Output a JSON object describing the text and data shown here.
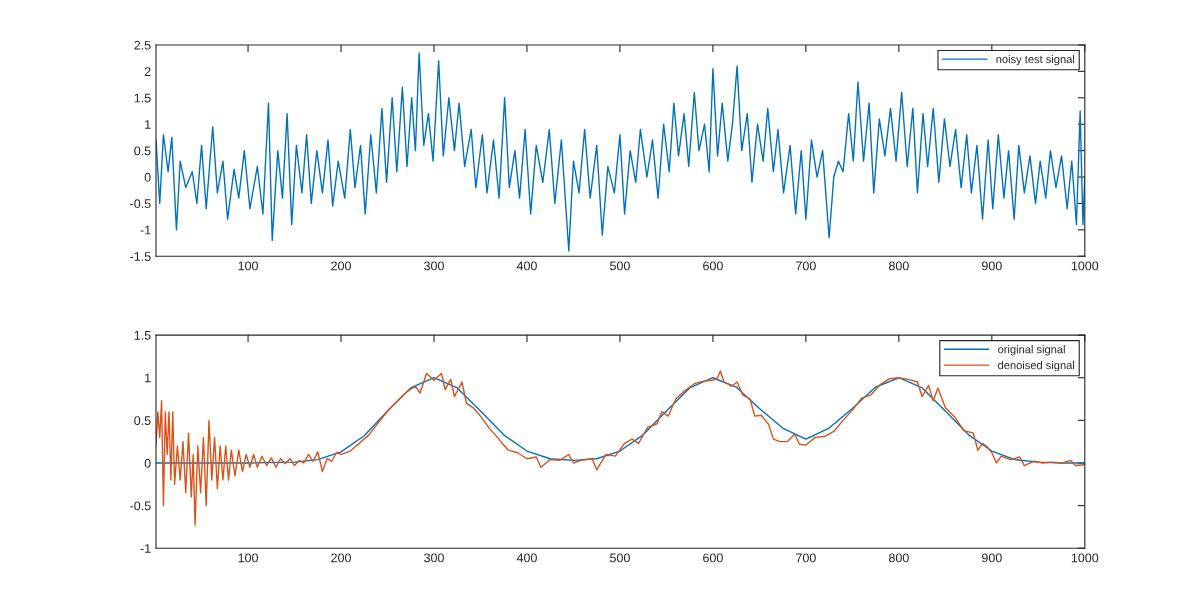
{
  "chart_data": [
    {
      "type": "line",
      "xlim": [
        1,
        1000
      ],
      "xticks": [
        100,
        200,
        300,
        400,
        500,
        600,
        700,
        800,
        900,
        1000
      ],
      "ylim": [
        -1.5,
        2.5
      ],
      "yticks": [
        -1.5,
        -1,
        -0.5,
        0,
        0.5,
        1,
        1.5,
        2,
        2.5
      ],
      "grid": false,
      "legend": "top right",
      "series": [
        {
          "name": "noisy test signal",
          "color": "#0072bd",
          "x": [
            1,
            5,
            9,
            14,
            18,
            23,
            27,
            33,
            40,
            45,
            50,
            55,
            62,
            67,
            73,
            78,
            85,
            90,
            96,
            102,
            110,
            116,
            122,
            126,
            132,
            137,
            142,
            147,
            152,
            158,
            163,
            168,
            174,
            180,
            186,
            191,
            197,
            204,
            210,
            215,
            221,
            226,
            232,
            238,
            244,
            249,
            255,
            260,
            266,
            271,
            276,
            280,
            284,
            289,
            294,
            299,
            305,
            310,
            316,
            322,
            327,
            333,
            340,
            345,
            352,
            357,
            364,
            370,
            376,
            381,
            387,
            392,
            398,
            404,
            410,
            417,
            424,
            430,
            437,
            445,
            450,
            456,
            462,
            468,
            475,
            481,
            487,
            494,
            500,
            505,
            511,
            517,
            522,
            529,
            535,
            541,
            547,
            553,
            558,
            563,
            569,
            574,
            580,
            585,
            591,
            596,
            600,
            605,
            610,
            616,
            621,
            626,
            631,
            637,
            642,
            648,
            654,
            659,
            665,
            670,
            676,
            683,
            689,
            695,
            700,
            706,
            712,
            718,
            725,
            730,
            735,
            740,
            746,
            751,
            756,
            762,
            768,
            773,
            779,
            785,
            791,
            797,
            803,
            809,
            815,
            820,
            826,
            831,
            837,
            843,
            849,
            855,
            861,
            867,
            873,
            878,
            884,
            890,
            896,
            901,
            907,
            913,
            918,
            924,
            929,
            935,
            941,
            947,
            952,
            958,
            963,
            969,
            975,
            981,
            986,
            991,
            995,
            998,
            1000
          ],
          "values": [
            0.7,
            -0.5,
            0.8,
            0.1,
            0.75,
            -1.0,
            0.3,
            -0.2,
            0.1,
            -0.5,
            0.6,
            -0.6,
            0.95,
            -0.3,
            0.3,
            -0.8,
            0.15,
            -0.4,
            0.5,
            -0.6,
            0.2,
            -0.7,
            1.4,
            -1.2,
            0.5,
            -0.4,
            1.2,
            -0.9,
            0.6,
            -0.3,
            0.8,
            -0.5,
            0.5,
            -0.3,
            0.7,
            -0.55,
            0.3,
            -0.4,
            0.9,
            -0.2,
            0.6,
            -0.7,
            0.8,
            -0.3,
            1.3,
            -0.1,
            1.5,
            0.1,
            1.7,
            0.2,
            1.5,
            0.5,
            2.35,
            0.6,
            1.2,
            0.3,
            2.2,
            0.4,
            1.5,
            0.5,
            1.4,
            0.2,
            0.9,
            -0.2,
            0.8,
            -0.3,
            0.7,
            -0.4,
            1.5,
            -0.2,
            0.5,
            -0.4,
            0.9,
            -0.7,
            0.6,
            -0.1,
            0.9,
            -0.5,
            0.7,
            -1.4,
            0.3,
            -0.3,
            0.9,
            -0.4,
            0.6,
            -1.1,
            0.2,
            -0.3,
            0.8,
            -0.7,
            0.5,
            -0.1,
            0.9,
            0.0,
            0.7,
            -0.4,
            1.0,
            0.1,
            1.4,
            0.4,
            1.2,
            0.2,
            1.6,
            0.5,
            1.0,
            0.1,
            2.05,
            0.4,
            1.4,
            0.3,
            1.0,
            2.1,
            0.5,
            1.2,
            -0.1,
            1.0,
            0.3,
            1.3,
            0.1,
            0.9,
            -0.3,
            0.6,
            -0.7,
            0.5,
            -0.8,
            0.7,
            0.0,
            0.5,
            -1.15,
            0.0,
            0.3,
            0.1,
            1.2,
            0.3,
            1.8,
            0.3,
            1.4,
            -0.3,
            1.1,
            0.4,
            1.3,
            0.3,
            1.6,
            0.2,
            1.3,
            -0.3,
            1.2,
            0.2,
            1.3,
            -0.1,
            1.1,
            0.2,
            0.9,
            -0.2,
            0.8,
            -0.3,
            0.6,
            -0.8,
            0.7,
            -0.6,
            0.8,
            -0.4,
            0.5,
            -0.8,
            0.6,
            -0.3,
            0.4,
            -0.5,
            0.3,
            -0.4,
            0.5,
            -0.2,
            0.4,
            -0.6,
            0.3,
            -0.9,
            1.25,
            -0.9,
            0.0
          ]
        }
      ]
    },
    {
      "type": "line",
      "xlim": [
        1,
        1000
      ],
      "xticks": [
        100,
        200,
        300,
        400,
        500,
        600,
        700,
        800,
        900,
        1000
      ],
      "ylim": [
        -1,
        1.5
      ],
      "yticks": [
        -1,
        -0.5,
        0,
        0.5,
        1,
        1.5
      ],
      "grid": false,
      "legend": "top right",
      "series": [
        {
          "name": "original signal",
          "color": "#0072bd",
          "x": [
            1,
            100,
            150,
            175,
            200,
            225,
            250,
            275,
            300,
            325,
            350,
            375,
            400,
            425,
            450,
            475,
            500,
            525,
            550,
            575,
            600,
            625,
            650,
            675,
            700,
            725,
            750,
            775,
            800,
            825,
            850,
            875,
            900,
            925,
            950,
            975,
            1000
          ],
          "values": [
            0,
            0,
            0.01,
            0.04,
            0.13,
            0.32,
            0.61,
            0.88,
            1.0,
            0.88,
            0.61,
            0.33,
            0.14,
            0.05,
            0.03,
            0.05,
            0.14,
            0.33,
            0.61,
            0.88,
            1.0,
            0.89,
            0.64,
            0.41,
            0.28,
            0.41,
            0.64,
            0.89,
            1.0,
            0.88,
            0.61,
            0.33,
            0.14,
            0.04,
            0.01,
            0,
            0
          ]
        },
        {
          "name": "denoised signal",
          "color": "#d95319",
          "x": [
            1,
            3,
            5,
            7,
            9,
            11,
            13,
            15,
            17,
            19,
            21,
            24,
            27,
            30,
            33,
            36,
            39,
            41,
            43,
            46,
            49,
            52,
            55,
            58,
            61,
            64,
            67,
            70,
            73,
            76,
            79,
            82,
            86,
            90,
            94,
            98,
            102,
            106,
            110,
            115,
            120,
            125,
            130,
            135,
            140,
            145,
            150,
            155,
            160,
            165,
            170,
            175,
            180,
            185,
            190,
            195,
            200,
            210,
            230,
            250,
            270,
            280,
            285,
            292,
            300,
            308,
            312,
            318,
            322,
            330,
            335,
            342,
            350,
            360,
            366,
            372,
            380,
            390,
            400,
            410,
            415,
            425,
            435,
            445,
            450,
            458,
            470,
            475,
            485,
            495,
            505,
            513,
            520,
            530,
            540,
            545,
            552,
            560,
            570,
            580,
            590,
            600,
            605,
            608,
            612,
            620,
            626,
            632,
            640,
            645,
            652,
            660,
            665,
            672,
            680,
            688,
            693,
            700,
            710,
            720,
            730,
            740,
            750,
            760,
            770,
            780,
            790,
            800,
            810,
            820,
            825,
            832,
            837,
            842,
            850,
            860,
            870,
            880,
            885,
            890,
            895,
            900,
            905,
            910,
            920,
            930,
            935,
            945,
            955,
            965,
            975,
            985,
            990,
            1000
          ],
          "values": [
            0.2,
            0.6,
            0.3,
            0.73,
            -0.5,
            0.6,
            0.1,
            0.6,
            -0.2,
            0.6,
            -0.25,
            0.2,
            -0.2,
            0.25,
            -0.35,
            0.35,
            -0.4,
            0.1,
            -0.73,
            0.2,
            -0.35,
            0.3,
            -0.5,
            0.5,
            -0.2,
            0.3,
            -0.3,
            0.2,
            -0.2,
            0.2,
            -0.2,
            0.15,
            -0.15,
            0.15,
            -0.1,
            0.1,
            -0.05,
            0.1,
            -0.05,
            0.08,
            -0.03,
            0.06,
            -0.05,
            0.05,
            -0.01,
            0.05,
            -0.03,
            0.03,
            0.0,
            0.1,
            0.02,
            0.13,
            -0.1,
            0.05,
            0.02,
            0.12,
            0.1,
            0.14,
            0.33,
            0.61,
            0.83,
            0.9,
            0.82,
            1.05,
            0.97,
            1.05,
            0.86,
            0.98,
            0.78,
            0.95,
            0.7,
            0.65,
            0.55,
            0.4,
            0.33,
            0.25,
            0.15,
            0.12,
            0.05,
            0.07,
            -0.05,
            0.04,
            0.03,
            0.1,
            0.0,
            0.03,
            0.05,
            -0.08,
            0.1,
            0.08,
            0.23,
            0.28,
            0.23,
            0.42,
            0.46,
            0.6,
            0.55,
            0.75,
            0.85,
            0.93,
            0.96,
            0.97,
            1.0,
            1.08,
            0.95,
            0.9,
            0.95,
            0.8,
            0.75,
            0.55,
            0.56,
            0.45,
            0.28,
            0.25,
            0.25,
            0.34,
            0.22,
            0.21,
            0.3,
            0.31,
            0.37,
            0.5,
            0.62,
            0.76,
            0.8,
            0.92,
            0.99,
            1.0,
            0.98,
            0.95,
            0.78,
            0.91,
            0.73,
            0.88,
            0.65,
            0.54,
            0.38,
            0.35,
            0.15,
            0.23,
            0.19,
            0.12,
            0.0,
            0.08,
            0.04,
            0.07,
            -0.03,
            0.02,
            0.0,
            0.01,
            0.0,
            0.03,
            -0.03,
            -0.02
          ]
        }
      ]
    }
  ]
}
